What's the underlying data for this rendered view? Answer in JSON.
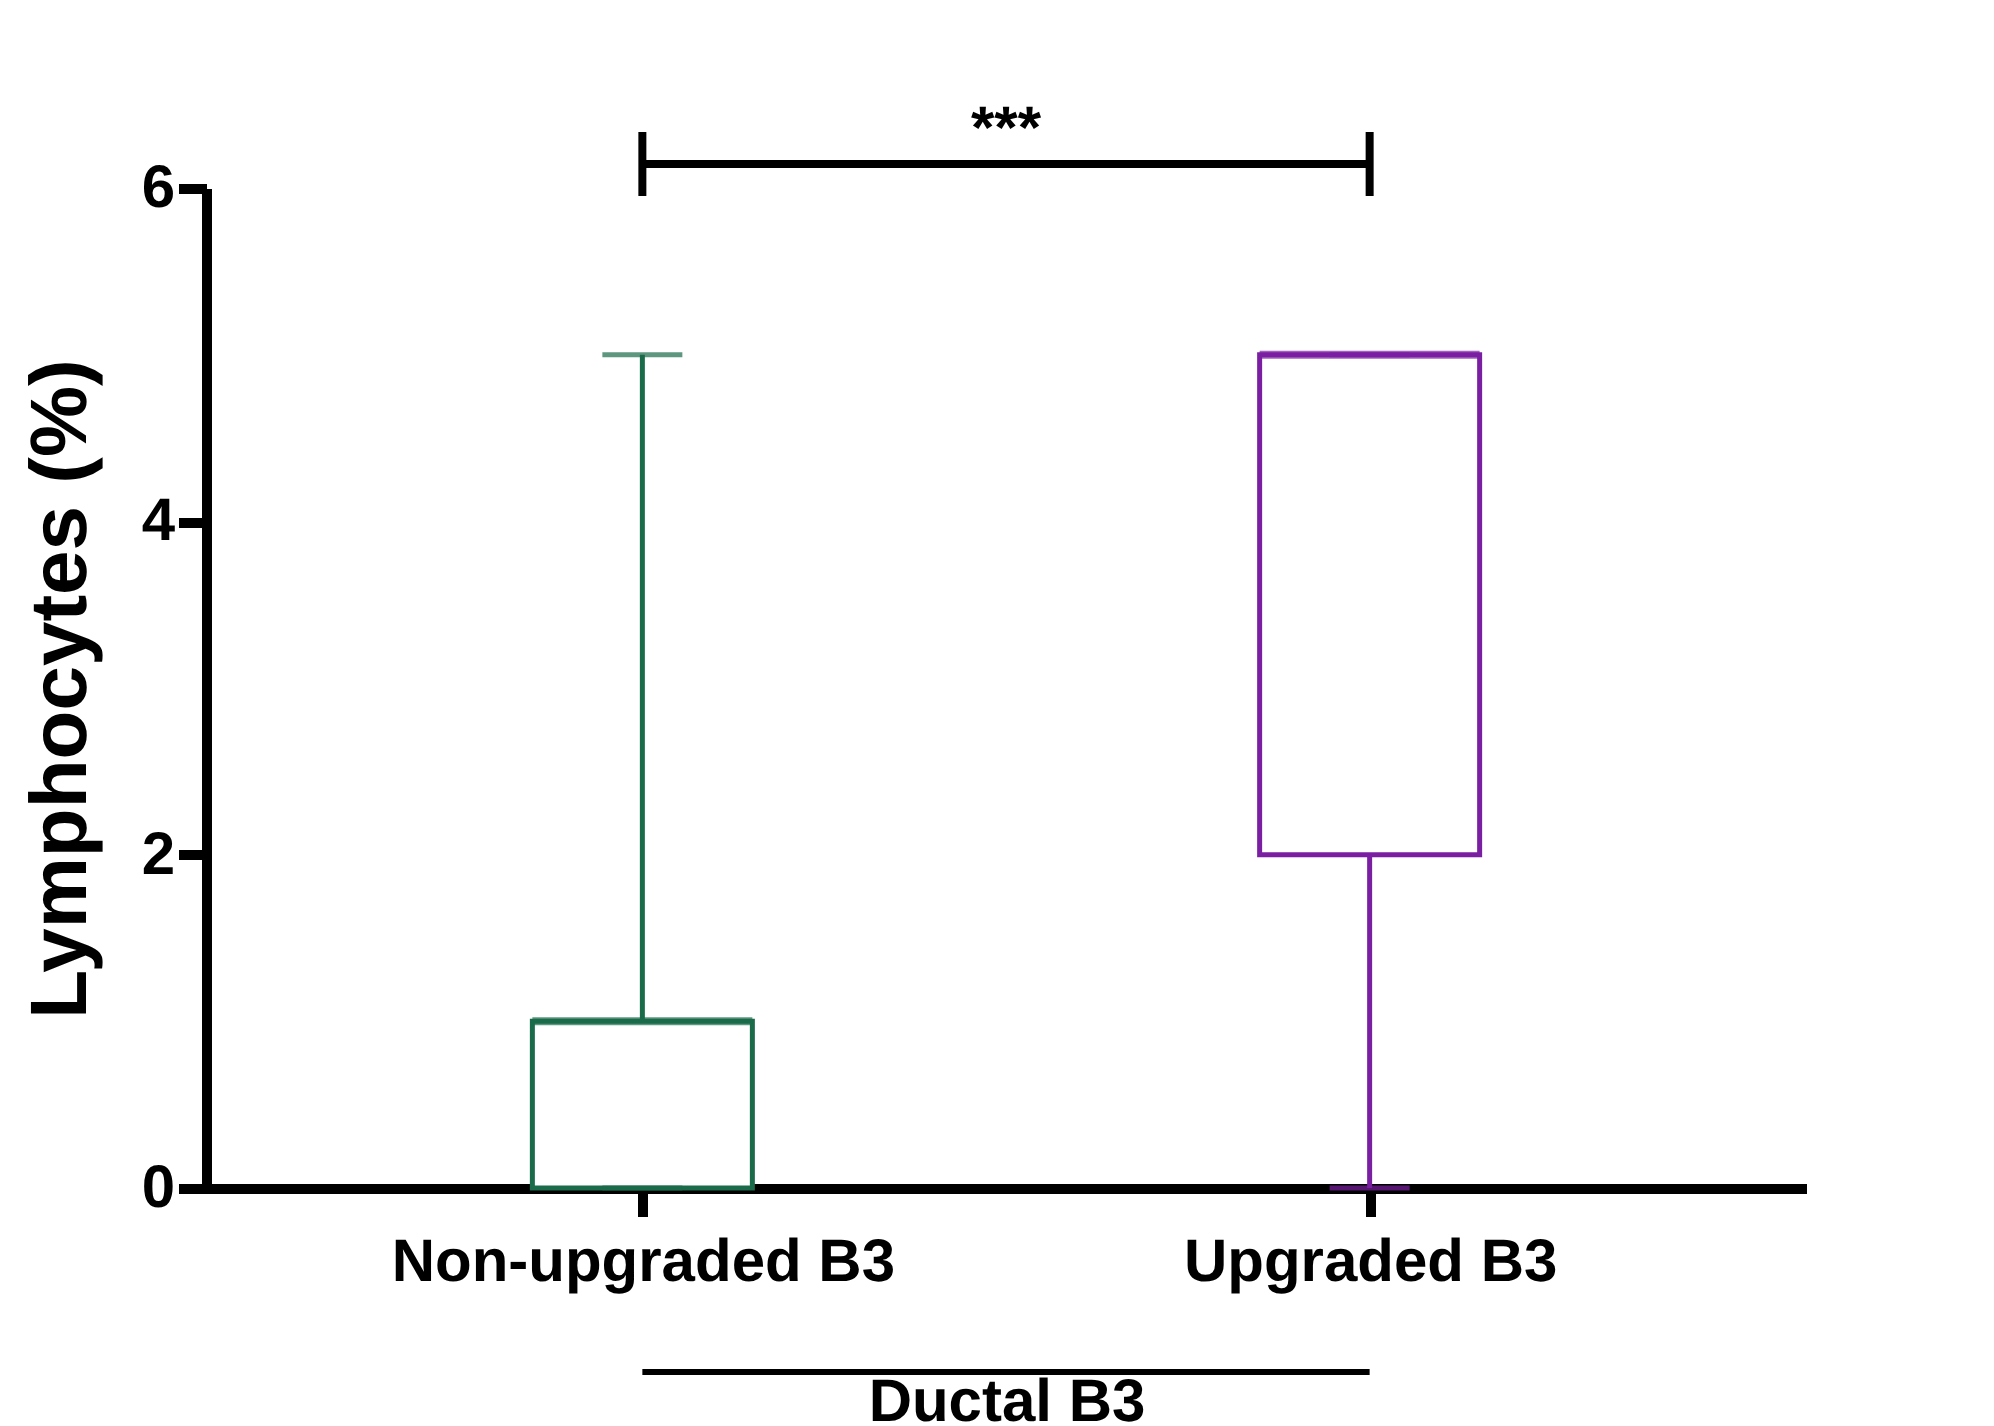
{
  "chart_data": {
    "type": "box",
    "categories": [
      "Non-upgraded B3",
      "Upgraded B3"
    ],
    "boxes": [
      {
        "low": 0,
        "q1": 0,
        "median": 1,
        "q3": 1,
        "high": 5
      },
      {
        "low": 0,
        "q1": 2,
        "median": 5,
        "q3": 5,
        "high": 5
      }
    ],
    "colors": [
      "#1a6b4a",
      "#7a1fa2"
    ],
    "xlabel": "Ductal B3",
    "ylabel": "Lymphocytes (%)",
    "ylim": [
      0,
      6
    ],
    "yticks": [
      {
        "value": 0,
        "label": "0"
      },
      {
        "value": 2,
        "label": "2"
      },
      {
        "value": 4,
        "label": "4"
      },
      {
        "value": 6,
        "label": "6"
      }
    ],
    "annotations": [
      "***"
    ],
    "grid": false,
    "legend": false
  }
}
